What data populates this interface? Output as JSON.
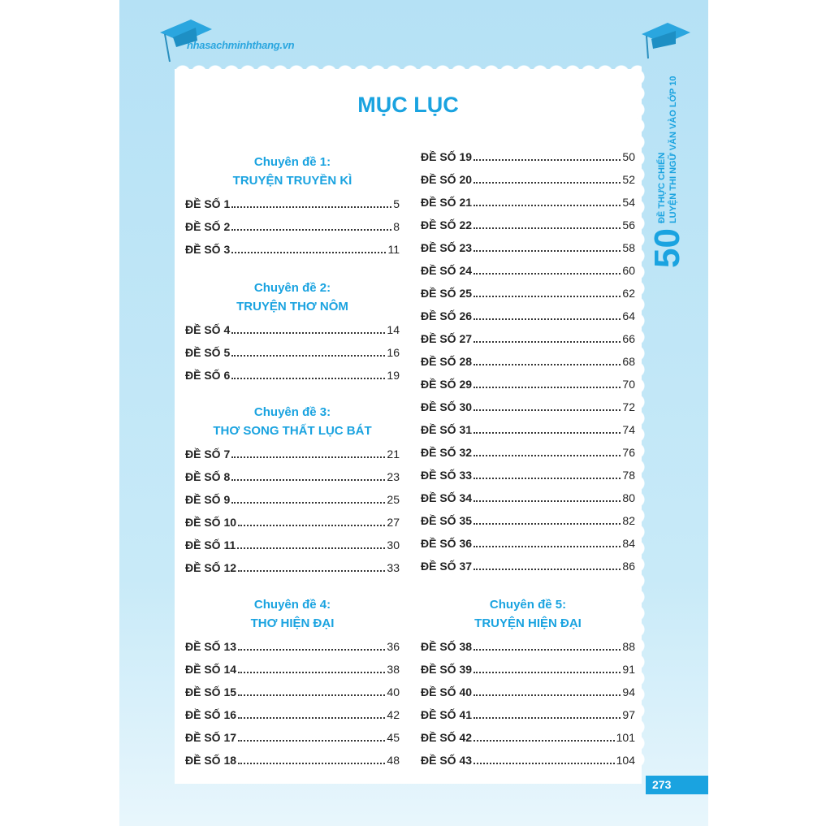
{
  "header": {
    "site": "nhasachminhthang.vn"
  },
  "side": {
    "number": "50",
    "line1": "ĐỀ THỰC CHIẾN",
    "line2": "LUYỆN THI NGỮ VĂN VÀO LỚP 10"
  },
  "title": "MỤC LỤC",
  "left_sections": [
    {
      "label": "Chuyên đề 1:",
      "name": "TRUYỆN TRUYỀN KÌ",
      "items": [
        {
          "t": "ĐỀ SỐ 1",
          "p": "5"
        },
        {
          "t": "ĐỀ SỐ 2",
          "p": "8"
        },
        {
          "t": "ĐỀ SỐ 3",
          "p": "11"
        }
      ]
    },
    {
      "label": "Chuyên đề 2:",
      "name": "TRUYỆN THƠ NÔM",
      "items": [
        {
          "t": "ĐỀ SỐ 4",
          "p": "14"
        },
        {
          "t": "ĐỀ SỐ 5",
          "p": "16"
        },
        {
          "t": "ĐỀ SỐ 6",
          "p": "19"
        }
      ]
    },
    {
      "label": "Chuyên đề 3:",
      "name": "THƠ SONG THẤT LỤC BÁT",
      "items": [
        {
          "t": "ĐỀ SỐ 7",
          "p": "21"
        },
        {
          "t": "ĐỀ SỐ 8",
          "p": "23"
        },
        {
          "t": "ĐỀ SỐ 9",
          "p": "25"
        },
        {
          "t": "ĐỀ SỐ 10",
          "p": "27"
        },
        {
          "t": "ĐỀ SỐ 11",
          "p": "30"
        },
        {
          "t": "ĐỀ SỐ 12",
          "p": "33"
        }
      ]
    },
    {
      "label": "Chuyên đề 4:",
      "name": "THƠ HIỆN ĐẠI",
      "items": [
        {
          "t": "ĐỀ SỐ 13",
          "p": "36"
        },
        {
          "t": "ĐỀ SỐ 14",
          "p": "38"
        },
        {
          "t": "ĐỀ SỐ 15",
          "p": "40"
        },
        {
          "t": "ĐỀ SỐ 16",
          "p": "42"
        },
        {
          "t": "ĐỀ SỐ 17",
          "p": "45"
        },
        {
          "t": "ĐỀ SỐ 18",
          "p": "48"
        }
      ]
    }
  ],
  "right_items": [
    {
      "t": "ĐỀ SỐ 19",
      "p": "50"
    },
    {
      "t": "ĐỀ SỐ 20",
      "p": "52"
    },
    {
      "t": "ĐỀ SỐ 21",
      "p": "54"
    },
    {
      "t": "ĐỀ SỐ 22",
      "p": "56"
    },
    {
      "t": "ĐỀ SỐ 23",
      "p": "58"
    },
    {
      "t": "ĐỀ SỐ 24",
      "p": "60"
    },
    {
      "t": "ĐỀ SỐ 25",
      "p": "62"
    },
    {
      "t": "ĐỀ SỐ 26",
      "p": "64"
    },
    {
      "t": "ĐỀ SỐ 27",
      "p": "66"
    },
    {
      "t": "ĐỀ SỐ 28",
      "p": "68"
    },
    {
      "t": "ĐỀ SỐ 29",
      "p": "70"
    },
    {
      "t": "ĐỀ SỐ 30",
      "p": "72"
    },
    {
      "t": "ĐỀ SỐ 31",
      "p": "74"
    },
    {
      "t": "ĐỀ SỐ 32",
      "p": "76"
    },
    {
      "t": "ĐỀ SỐ 33",
      "p": "78"
    },
    {
      "t": "ĐỀ SỐ 34",
      "p": "80"
    },
    {
      "t": "ĐỀ SỐ 35",
      "p": "82"
    },
    {
      "t": "ĐỀ SỐ 36",
      "p": "84"
    },
    {
      "t": "ĐỀ SỐ 37",
      "p": "86"
    }
  ],
  "right_section": {
    "label": "Chuyên đề 5:",
    "name": "TRUYỆN HIỆN ĐẠI",
    "items": [
      {
        "t": "ĐỀ SỐ 38",
        "p": "88"
      },
      {
        "t": "ĐỀ SỐ 39",
        "p": "91"
      },
      {
        "t": "ĐỀ SỐ 40",
        "p": "94"
      },
      {
        "t": "ĐỀ SỐ 41",
        "p": "97"
      },
      {
        "t": "ĐỀ SỐ 42",
        "p": "101"
      },
      {
        "t": "ĐỀ SỐ 43",
        "p": "104"
      }
    ]
  },
  "page_number": "273",
  "colors": {
    "accent": "#1aa3e0",
    "background": "#c2e6f7"
  }
}
